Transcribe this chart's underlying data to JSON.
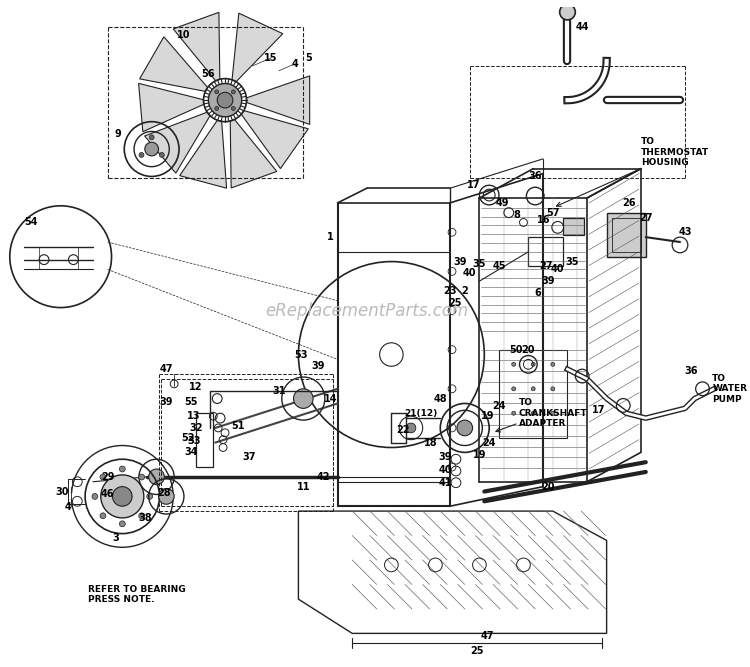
{
  "bg_color": "#ffffff",
  "line_color": "#222222",
  "text_color": "#000000",
  "watermark": "eReplacementParts.com",
  "watermark_color": "#bbbbbb",
  "note_text": "REFER TO BEARING\nPRESS NOTE.",
  "to_thermostat": "TO\nTHERMOSTAT\nHOUSING",
  "to_water_pump": "TO\nWATER\nPUMP",
  "to_crankshaft": "TO\nCRANKSHAFT\nADAPTER"
}
